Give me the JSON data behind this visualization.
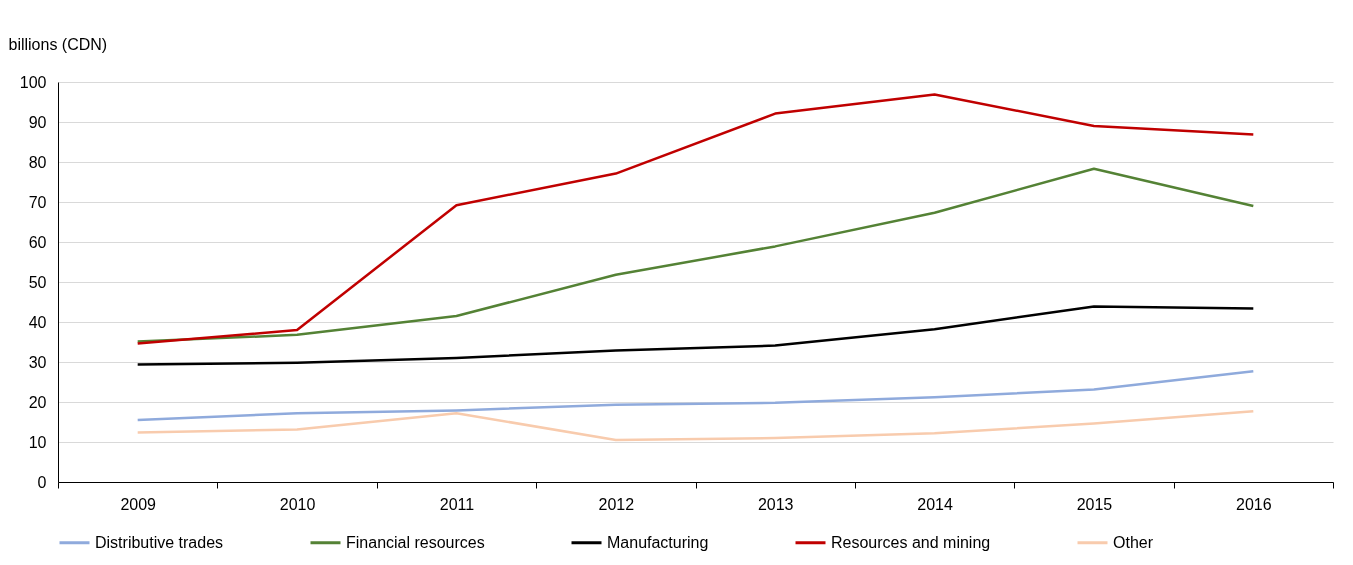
{
  "chart_data": {
    "type": "line",
    "ylabel": "billions (CDN)",
    "categories": [
      "2009",
      "2010",
      "2011",
      "2012",
      "2013",
      "2014",
      "2015",
      "2016"
    ],
    "ylim": [
      0,
      100
    ],
    "yticks": [
      0,
      10,
      20,
      30,
      40,
      50,
      60,
      70,
      80,
      90,
      100
    ],
    "grid": "y",
    "legend": "bottom",
    "marker": "none",
    "line_style": "solid",
    "series": [
      {
        "name": "Distributive trades",
        "color": "#8faadc",
        "values": [
          15.5,
          17.2,
          17.9,
          19.3,
          19.8,
          21.2,
          23.1,
          27.7
        ]
      },
      {
        "name": "Financial resources",
        "color": "#548235",
        "values": [
          35.1,
          36.8,
          41.5,
          51.8,
          58.9,
          67.3,
          78.3,
          69
        ]
      },
      {
        "name": "Manufacturing",
        "color": "#000000",
        "values": [
          29.4,
          29.8,
          31,
          32.9,
          34.1,
          38.2,
          43.9,
          43.4
        ]
      },
      {
        "name": "Resources and mining",
        "color": "#c00000",
        "values": [
          34.6,
          38,
          69.2,
          77.1,
          92.1,
          96.9,
          89,
          86.9
        ]
      },
      {
        "name": "Other",
        "color": "#f8cbad",
        "values": [
          12.4,
          13.1,
          17.2,
          10.5,
          11,
          12.2,
          14.6,
          17.7
        ]
      }
    ]
  }
}
